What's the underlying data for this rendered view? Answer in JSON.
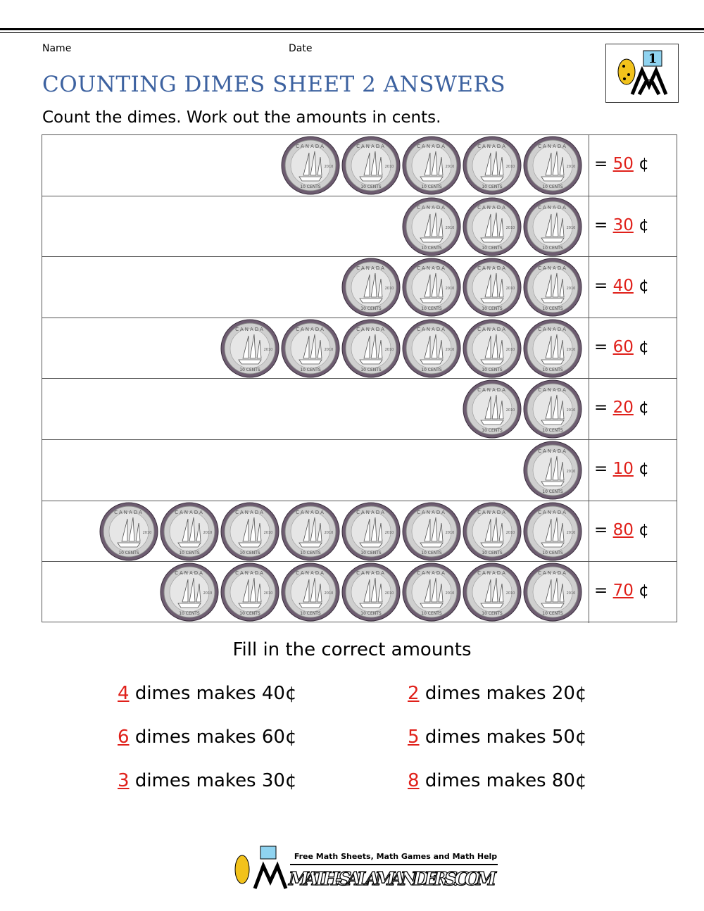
{
  "header": {
    "name_label": "Name",
    "date_label": "Date",
    "logo_grade": "1",
    "title": "COUNTING DIMES SHEET 2 ANSWERS",
    "instruction": "Count the dimes. Work out the amounts in cents."
  },
  "coin": {
    "country": "CANADA",
    "year": "2010",
    "denomination": "10 CENTS"
  },
  "table": {
    "equals": "=",
    "unit": "¢",
    "rows": [
      {
        "coins": 5,
        "answer": "50"
      },
      {
        "coins": 3,
        "answer": "30"
      },
      {
        "coins": 4,
        "answer": "40"
      },
      {
        "coins": 6,
        "answer": "60"
      },
      {
        "coins": 2,
        "answer": "20"
      },
      {
        "coins": 1,
        "answer": "10"
      },
      {
        "coins": 8,
        "answer": "80"
      },
      {
        "coins": 7,
        "answer": "70"
      }
    ]
  },
  "fill": {
    "heading": "Fill in the correct amounts",
    "items": [
      {
        "answer": "4",
        "text": "dimes makes 40¢"
      },
      {
        "answer": "2",
        "text": "dimes makes 20¢"
      },
      {
        "answer": "6",
        "text": "dimes makes 60¢"
      },
      {
        "answer": "5",
        "text": "dimes makes 50¢"
      },
      {
        "answer": "3",
        "text": "dimes makes 30¢"
      },
      {
        "answer": "8",
        "text": "dimes makes 80¢"
      }
    ]
  },
  "footer": {
    "tagline": "Free Math Sheets, Math Games and Math Help",
    "site": "MATH-SALAMANDERS.COM"
  }
}
